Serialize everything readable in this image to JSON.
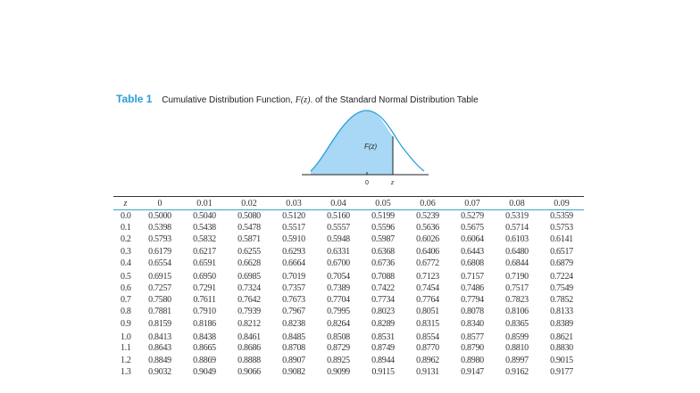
{
  "title": {
    "label": "Table 1",
    "text_before": "Cumulative Distribution Function, ",
    "function": "F(z)",
    "text_after": ". of the Standard Normal Distribution Table"
  },
  "figure": {
    "area_label": "F(z)",
    "axis_zero": "0",
    "axis_z": "z",
    "fill_color": "#a8d8f5",
    "curve_color": "#2a9fd8"
  },
  "table": {
    "headers": [
      "z",
      "0",
      "0.01",
      "0.02",
      "0.03",
      "0.04",
      "0.05",
      "0.06",
      "0.07",
      "0.08",
      "0.09"
    ],
    "rows": [
      [
        "0.0",
        "0.5000",
        "0.5040",
        "0.5080",
        "0.5120",
        "0.5160",
        "0.5199",
        "0.5239",
        "0.5279",
        "0.5319",
        "0.5359"
      ],
      [
        "0.1",
        "0.5398",
        "0.5438",
        "0.5478",
        "0.5517",
        "0.5557",
        "0.5596",
        "0.5636",
        "0.5675",
        "0.5714",
        "0.5753"
      ],
      [
        "0.2",
        "0.5793",
        "0.5832",
        "0.5871",
        "0.5910",
        "0.5948",
        "0.5987",
        "0.6026",
        "0.6064",
        "0.6103",
        "0.6141"
      ],
      [
        "0.3",
        "0.6179",
        "0.6217",
        "0.6255",
        "0.6293",
        "0.6331",
        "0.6368",
        "0.6406",
        "0.6443",
        "0.6480",
        "0.6517"
      ],
      [
        "0.4",
        "0.6554",
        "0.6591",
        "0.6628",
        "0.6664",
        "0.6700",
        "0.6736",
        "0.6772",
        "0.6808",
        "0.6844",
        "0.6879"
      ],
      [
        "0.5",
        "0.6915",
        "0.6950",
        "0.6985",
        "0.7019",
        "0.7054",
        "0.7088",
        "0.7123",
        "0.7157",
        "0.7190",
        "0.7224"
      ],
      [
        "0.6",
        "0.7257",
        "0.7291",
        "0.7324",
        "0.7357",
        "0.7389",
        "0.7422",
        "0.7454",
        "0.7486",
        "0.7517",
        "0.7549"
      ],
      [
        "0.7",
        "0.7580",
        "0.7611",
        "0.7642",
        "0.7673",
        "0.7704",
        "0.7734",
        "0.7764",
        "0.7794",
        "0.7823",
        "0.7852"
      ],
      [
        "0.8",
        "0.7881",
        "0.7910",
        "0.7939",
        "0.7967",
        "0.7995",
        "0.8023",
        "0.8051",
        "0.8078",
        "0.8106",
        "0.8133"
      ],
      [
        "0.9",
        "0.8159",
        "0.8186",
        "0.8212",
        "0.8238",
        "0.8264",
        "0.8289",
        "0.8315",
        "0.8340",
        "0.8365",
        "0.8389"
      ],
      [
        "1.0",
        "0.8413",
        "0.8438",
        "0.8461",
        "0.8485",
        "0.8508",
        "0.8531",
        "0.8554",
        "0.8577",
        "0.8599",
        "0.8621"
      ],
      [
        "1.1",
        "0.8643",
        "0.8665",
        "0.8686",
        "0.8708",
        "0.8729",
        "0.8749",
        "0.8770",
        "0.8790",
        "0.8810",
        "0.8830"
      ],
      [
        "1.2",
        "0.8849",
        "0.8869",
        "0.8888",
        "0.8907",
        "0.8925",
        "0.8944",
        "0.8962",
        "0.8980",
        "0.8997",
        "0.9015"
      ],
      [
        "1.3",
        "0.9032",
        "0.9049",
        "0.9066",
        "0.9082",
        "0.9099",
        "0.9115",
        "0.9131",
        "0.9147",
        "0.9162",
        "0.9177"
      ]
    ]
  }
}
